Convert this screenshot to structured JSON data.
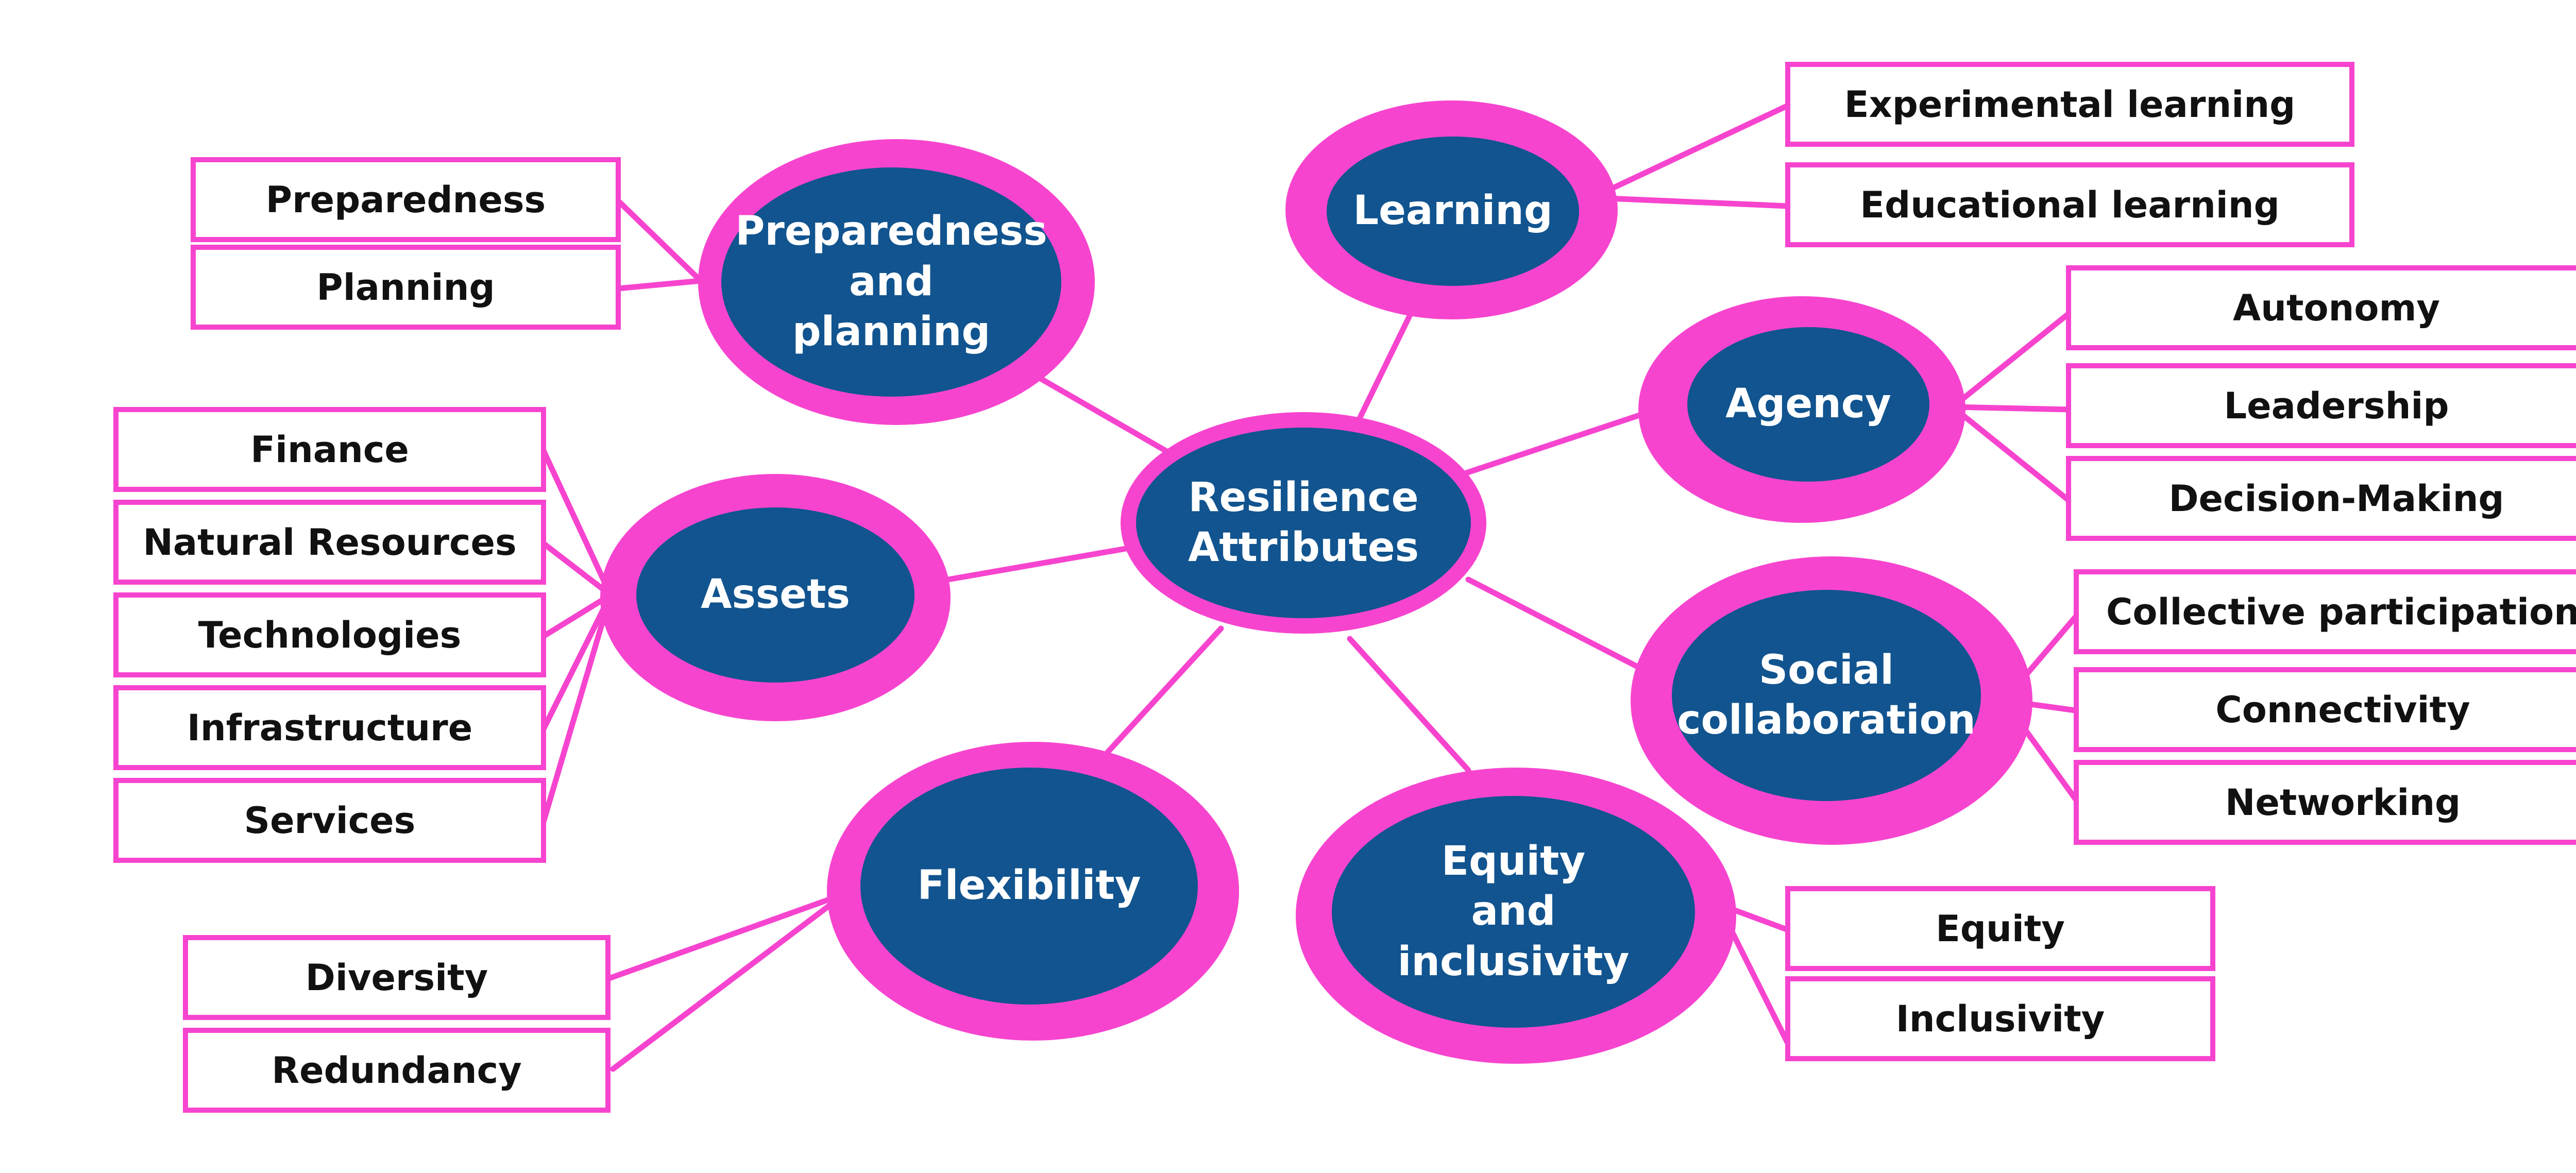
{
  "colors": {
    "accent_pink": "#f744cf",
    "node_blue": "#11548f",
    "leaf_text": "#111111",
    "node_text": "#ffffff"
  },
  "center": {
    "label": "Resilience\nAttributes"
  },
  "attributes": {
    "learning": {
      "label": "Learning",
      "items": [
        "Experimental learning",
        "Educational learning"
      ]
    },
    "preparedness": {
      "label": "Preparedness\nand\nplanning",
      "items": [
        "Preparedness",
        "Planning"
      ]
    },
    "agency": {
      "label": "Agency",
      "items": [
        "Autonomy",
        "Leadership",
        "Decision-Making"
      ]
    },
    "assets": {
      "label": "Assets",
      "items": [
        "Finance",
        "Natural Resources",
        "Technologies",
        "Infrastructure",
        "Services"
      ]
    },
    "social": {
      "label": "Social\ncollaboration",
      "items": [
        "Collective participation",
        "Connectivity",
        "Networking"
      ]
    },
    "flexibility": {
      "label": "Flexibility",
      "items": [
        "Diversity",
        "Redundancy"
      ]
    },
    "equity": {
      "label": "Equity\nand\ninclusivity",
      "items": [
        "Equity",
        "Inclusivity"
      ]
    }
  }
}
